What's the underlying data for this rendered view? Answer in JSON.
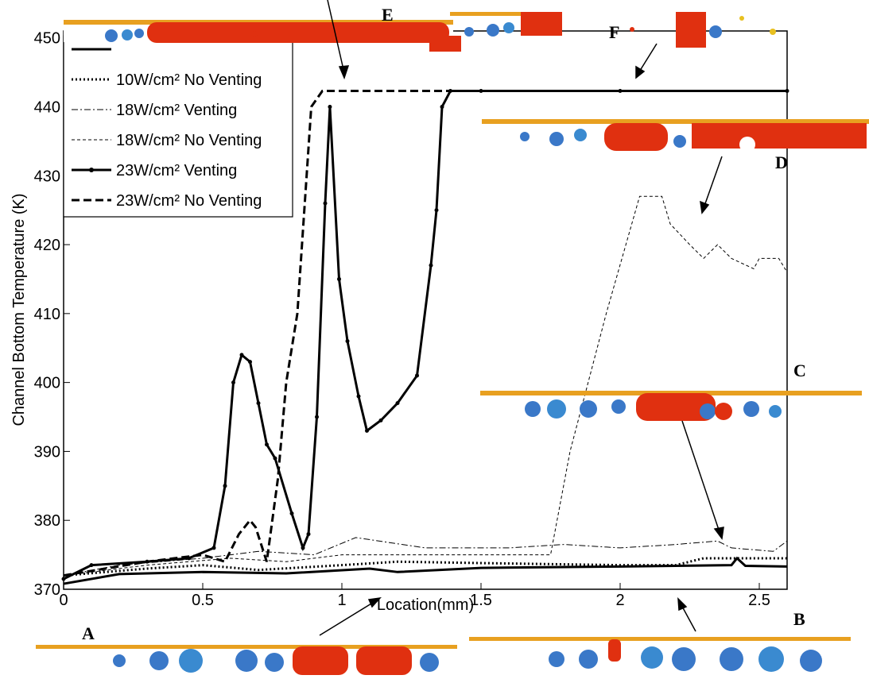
{
  "chart_data": {
    "type": "line",
    "xlabel": "Location(mm)",
    "ylabel": "Channel Bottom Temperature (K)",
    "xlim": [
      0,
      2.6
    ],
    "ylim": [
      370,
      451
    ],
    "xticks": [
      0,
      0.5,
      1,
      1.5,
      2,
      2.5
    ],
    "yticks": [
      370,
      380,
      390,
      400,
      410,
      420,
      430,
      440,
      450
    ],
    "series": [
      {
        "color": "#000000",
        "dash": "solid",
        "width": 3,
        "x": [
          0,
          0.2,
          0.5,
          0.8,
          1.1,
          1.2,
          1.5,
          2.0,
          2.4,
          2.42,
          2.45,
          2.6
        ],
        "values": [
          370.8,
          372.2,
          372.5,
          372.3,
          373,
          372.5,
          373.1,
          373.3,
          373.5,
          374.5,
          373.4,
          373.3
        ]
      },
      {
        "name": "10W/cm² No Venting",
        "color": "#000000",
        "dash": "dotted",
        "width": 3,
        "x": [
          0,
          0.3,
          0.5,
          0.7,
          1.0,
          1.2,
          1.5,
          2.0,
          2.2,
          2.3,
          2.6
        ],
        "values": [
          372,
          373,
          373.5,
          372.8,
          373.5,
          374,
          373.8,
          373.5,
          373.5,
          374.5,
          374.5
        ]
      },
      {
        "name": "18W/cm² Venting",
        "color": "#000000",
        "dash": "dashdot",
        "width": 1,
        "x": [
          0,
          0.2,
          0.5,
          0.7,
          0.9,
          1.05,
          1.3,
          1.6,
          1.8,
          2.0,
          2.2,
          2.35,
          2.4,
          2.55,
          2.6
        ],
        "values": [
          372,
          373.5,
          374.5,
          375.5,
          375,
          377.5,
          376,
          376,
          376.5,
          376,
          376.5,
          377,
          376,
          375.5,
          377
        ]
      },
      {
        "name": "18W/cm² No Venting",
        "color": "#000000",
        "dash": "dashed-thin",
        "width": 1,
        "x": [
          0,
          0.3,
          0.6,
          0.8,
          1.0,
          1.3,
          1.6,
          1.75,
          1.82,
          1.95,
          2.07,
          2.15,
          2.18,
          2.25,
          2.3,
          2.35,
          2.4,
          2.48,
          2.5,
          2.57,
          2.6
        ],
        "values": [
          372,
          373.5,
          374.5,
          374,
          375,
          375,
          375,
          375,
          390,
          410,
          427,
          427,
          423,
          420,
          418,
          420,
          418,
          416.5,
          418,
          418,
          416
        ]
      },
      {
        "name": "23W/cm² Venting",
        "color": "#000000",
        "dash": "solid",
        "width": 3,
        "marker": true,
        "x": [
          0,
          0.1,
          0.3,
          0.45,
          0.54,
          0.58,
          0.61,
          0.64,
          0.67,
          0.7,
          0.73,
          0.76,
          0.82,
          0.86,
          0.88,
          0.91,
          0.94,
          0.957,
          0.99,
          1.02,
          1.06,
          1.09,
          1.14,
          1.2,
          1.27,
          1.32,
          1.34,
          1.36,
          1.39,
          1.5,
          2.0,
          2.6
        ],
        "values": [
          371.5,
          373.5,
          374,
          374.5,
          376,
          385,
          400,
          404,
          403,
          397,
          391,
          389,
          381,
          376,
          378,
          395,
          426,
          440,
          415,
          406,
          398,
          393,
          394.5,
          397,
          401,
          417,
          425,
          440,
          442.3,
          442.3,
          442.3,
          442.3
        ]
      },
      {
        "name": "23W/cm² No Venting",
        "color": "#000000",
        "dash": "dashed",
        "width": 3,
        "x": [
          0,
          0.3,
          0.5,
          0.58,
          0.63,
          0.67,
          0.69,
          0.73,
          0.77,
          0.8,
          0.84,
          0.87,
          0.89,
          0.93,
          2.6
        ],
        "values": [
          372,
          374,
          375,
          374,
          378,
          380,
          379,
          374,
          386,
          400,
          410,
          428,
          440,
          442.3,
          442.3
        ]
      }
    ],
    "annotations": [
      "A",
      "B",
      "C",
      "D",
      "E",
      "F"
    ]
  }
}
